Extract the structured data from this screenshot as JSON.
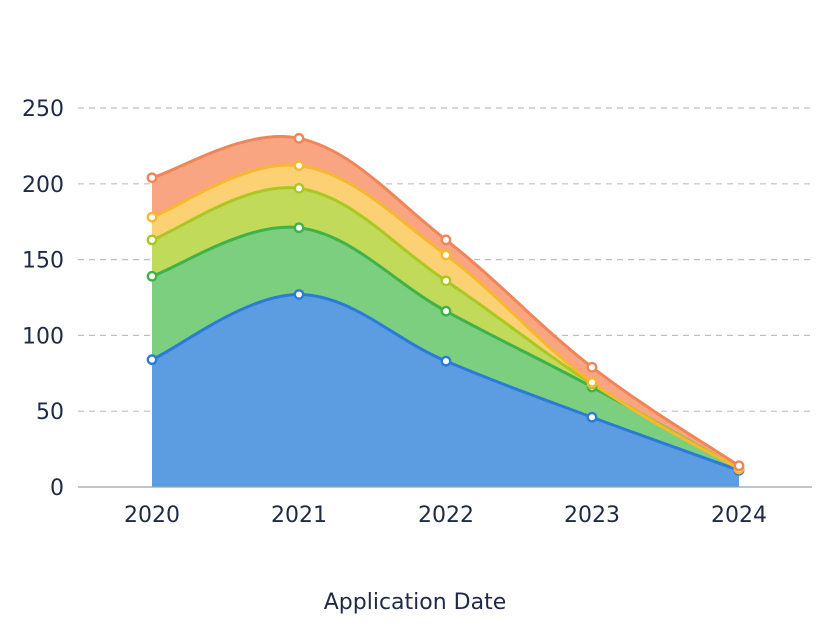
{
  "chart_data": {
    "type": "area",
    "stacked": true,
    "title": "",
    "xlabel": "Application Date",
    "ylabel": "",
    "ylim": [
      0,
      250
    ],
    "yticks": [
      0,
      50,
      100,
      150,
      200,
      250
    ],
    "categories": [
      "2020",
      "2021",
      "2022",
      "2023",
      "2024"
    ],
    "grid": true,
    "legend": "none",
    "series": [
      {
        "color": "#2b7bd9",
        "fill": "#5b9de0",
        "values": [
          84,
          127,
          83,
          46,
          11
        ]
      },
      {
        "color": "#3fb24a",
        "fill": "#7ccf7e",
        "values": [
          55,
          44,
          33,
          20,
          1
        ]
      },
      {
        "color": "#a9c823",
        "fill": "#c2da5a",
        "values": [
          24,
          26,
          20,
          2,
          0
        ]
      },
      {
        "color": "#f5b82e",
        "fill": "#fcd173",
        "values": [
          15,
          15,
          17,
          1,
          0
        ]
      },
      {
        "color": "#f08558",
        "fill": "#f9a581",
        "values": [
          26,
          18,
          10,
          10,
          2
        ]
      }
    ]
  }
}
